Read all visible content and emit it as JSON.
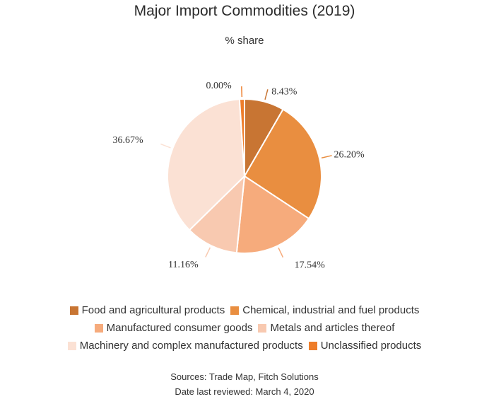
{
  "chart_data": {
    "type": "pie",
    "title": "Major Import Commodities (2019)",
    "subtitle": "% share",
    "slices": [
      {
        "name": "Food and agricultural products",
        "value": 8.43,
        "label": "8.43%",
        "color": "#c87533"
      },
      {
        "name": "Chemical, industrial and fuel products",
        "value": 26.2,
        "label": "26.20%",
        "color": "#e98e40"
      },
      {
        "name": "Manufactured consumer goods",
        "value": 17.54,
        "label": "17.54%",
        "color": "#f6ab7c"
      },
      {
        "name": "Metals and articles thereof",
        "value": 11.16,
        "label": "11.16%",
        "color": "#f8c9b0"
      },
      {
        "name": "Machinery and complex manufactured products",
        "value": 36.67,
        "label": "36.67%",
        "color": "#fbe1d4"
      },
      {
        "name": "Unclassified products",
        "value": 0.0,
        "label": "0.00%",
        "color": "#ee7d2a"
      }
    ],
    "legend_position": "bottom"
  },
  "footer": {
    "sources": "Sources: Trade Map, Fitch Solutions",
    "reviewed": "Date last reviewed: March 4, 2020"
  }
}
